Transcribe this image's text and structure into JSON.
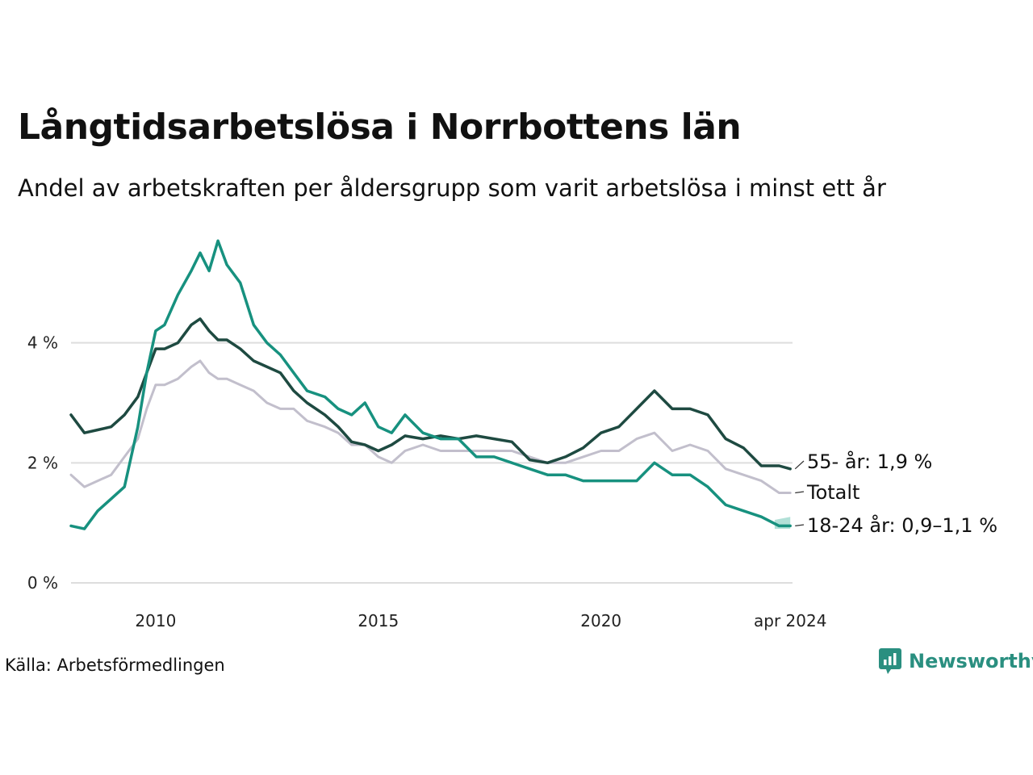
{
  "title": "Långtidsarbetslösa i Norrbottens län",
  "subtitle": "Andel av arbetskraften per åldersgrupp som varit arbetslösa i minst ett år",
  "source": "Källa: Arbetsförmedlingen",
  "brand": "Newsworthy",
  "colors": {
    "total": "#c2bfcc",
    "older": "#1e4a41",
    "young": "#17917f",
    "band": "#9ed8cd",
    "grid": "#dddddd"
  },
  "chart_data": {
    "type": "line",
    "title": "Långtidsarbetslösa i Norrbottens län",
    "ylabel": "",
    "xlabel": "",
    "ylim": [
      0,
      6
    ],
    "xlim": [
      2008.1,
      2024.3
    ],
    "yticks": [
      0,
      2,
      4
    ],
    "ytick_labels": [
      "0 %",
      "2 %",
      "4 %"
    ],
    "xticks": [
      2010,
      2015,
      2020,
      2024.25
    ],
    "xtick_labels": [
      "2010",
      "2015",
      "2020",
      "apr 2024"
    ],
    "series": [
      {
        "name": "Totalt",
        "label": "Totalt",
        "key": "total",
        "x": [
          2008.1,
          2008.4,
          2008.7,
          2009.0,
          2009.3,
          2009.6,
          2009.8,
          2010.0,
          2010.2,
          2010.5,
          2010.8,
          2011.0,
          2011.2,
          2011.4,
          2011.6,
          2011.9,
          2012.2,
          2012.5,
          2012.8,
          2013.1,
          2013.4,
          2013.8,
          2014.1,
          2014.4,
          2014.7,
          2015.0,
          2015.3,
          2015.6,
          2016.0,
          2016.4,
          2016.8,
          2017.2,
          2017.6,
          2018.0,
          2018.4,
          2018.8,
          2019.2,
          2019.6,
          2020.0,
          2020.4,
          2020.8,
          2021.2,
          2021.6,
          2022.0,
          2022.4,
          2022.8,
          2023.2,
          2023.6,
          2024.0,
          2024.25
        ],
        "values": [
          1.8,
          1.6,
          1.7,
          1.8,
          2.1,
          2.4,
          2.9,
          3.3,
          3.3,
          3.4,
          3.6,
          3.7,
          3.5,
          3.4,
          3.4,
          3.3,
          3.2,
          3.0,
          2.9,
          2.9,
          2.7,
          2.6,
          2.5,
          2.3,
          2.3,
          2.1,
          2.0,
          2.2,
          2.3,
          2.2,
          2.2,
          2.2,
          2.2,
          2.2,
          2.1,
          2.0,
          2.0,
          2.1,
          2.2,
          2.2,
          2.4,
          2.5,
          2.2,
          2.3,
          2.2,
          1.9,
          1.8,
          1.7,
          1.5,
          1.5
        ],
        "end_label": "Totalt"
      },
      {
        "name": "55- år",
        "label": "55- år: 1,9 %",
        "key": "older",
        "x": [
          2008.1,
          2008.4,
          2008.7,
          2009.0,
          2009.3,
          2009.6,
          2009.8,
          2010.0,
          2010.2,
          2010.5,
          2010.8,
          2011.0,
          2011.2,
          2011.4,
          2011.6,
          2011.9,
          2012.2,
          2012.5,
          2012.8,
          2013.1,
          2013.4,
          2013.8,
          2014.1,
          2014.4,
          2014.7,
          2015.0,
          2015.3,
          2015.6,
          2016.0,
          2016.4,
          2016.8,
          2017.2,
          2017.6,
          2018.0,
          2018.4,
          2018.8,
          2019.2,
          2019.6,
          2020.0,
          2020.4,
          2020.8,
          2021.2,
          2021.6,
          2022.0,
          2022.4,
          2022.8,
          2023.2,
          2023.6,
          2024.0,
          2024.25
        ],
        "values": [
          2.8,
          2.5,
          2.55,
          2.6,
          2.8,
          3.1,
          3.5,
          3.9,
          3.9,
          4.0,
          4.3,
          4.4,
          4.2,
          4.05,
          4.05,
          3.9,
          3.7,
          3.6,
          3.5,
          3.2,
          3.0,
          2.8,
          2.6,
          2.35,
          2.3,
          2.2,
          2.3,
          2.45,
          2.4,
          2.45,
          2.4,
          2.45,
          2.4,
          2.35,
          2.05,
          2.0,
          2.1,
          2.25,
          2.5,
          2.6,
          2.9,
          3.2,
          2.9,
          2.9,
          2.8,
          2.4,
          2.25,
          1.95,
          1.95,
          1.9
        ],
        "end_label": "55- år: 1,9 %"
      },
      {
        "name": "18-24 år",
        "label": "18-24 år: 0,9–1,1 %",
        "key": "young",
        "x": [
          2008.1,
          2008.4,
          2008.7,
          2009.0,
          2009.3,
          2009.6,
          2009.8,
          2010.0,
          2010.2,
          2010.5,
          2010.8,
          2011.0,
          2011.2,
          2011.4,
          2011.6,
          2011.9,
          2012.2,
          2012.5,
          2012.8,
          2013.1,
          2013.4,
          2013.8,
          2014.1,
          2014.4,
          2014.7,
          2015.0,
          2015.3,
          2015.6,
          2016.0,
          2016.4,
          2016.8,
          2017.2,
          2017.6,
          2018.0,
          2018.4,
          2018.8,
          2019.2,
          2019.6,
          2020.0,
          2020.4,
          2020.8,
          2021.2,
          2021.6,
          2022.0,
          2022.4,
          2022.8,
          2023.2,
          2023.6,
          2024.0,
          2024.25
        ],
        "values": [
          0.95,
          0.9,
          1.2,
          1.4,
          1.6,
          2.6,
          3.5,
          4.2,
          4.3,
          4.8,
          5.2,
          5.5,
          5.2,
          5.7,
          5.3,
          5.0,
          4.3,
          4.0,
          3.8,
          3.5,
          3.2,
          3.1,
          2.9,
          2.8,
          3.0,
          2.6,
          2.5,
          2.8,
          2.5,
          2.4,
          2.4,
          2.1,
          2.1,
          2.0,
          1.9,
          1.8,
          1.8,
          1.7,
          1.7,
          1.7,
          1.7,
          2.0,
          1.8,
          1.8,
          1.6,
          1.3,
          1.2,
          1.1,
          0.95,
          0.95
        ],
        "band": {
          "x": [
            2023.9,
            2024.25
          ],
          "low": [
            0.9,
            0.9
          ],
          "high": [
            1.05,
            1.1
          ]
        },
        "end_label": "18-24 år: 0,9–1,1 %"
      }
    ]
  }
}
